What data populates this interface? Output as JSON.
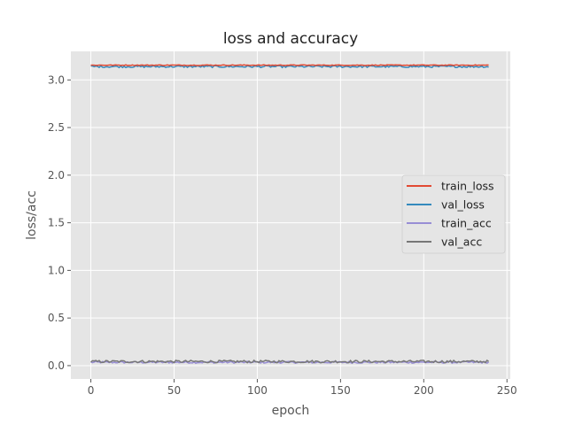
{
  "chart_data": {
    "type": "line",
    "title": "loss and accuracy",
    "xlabel": "epoch",
    "ylabel": "loss/acc",
    "xlim": [
      -12,
      252
    ],
    "ylim": [
      -0.14,
      3.3
    ],
    "xticks": [
      0,
      50,
      100,
      150,
      200,
      250
    ],
    "yticks": [
      0.0,
      0.5,
      1.0,
      1.5,
      2.0,
      2.5,
      3.0
    ],
    "xtick_labels": [
      "0",
      "50",
      "100",
      "150",
      "200",
      "250"
    ],
    "ytick_labels": [
      "0.0",
      "0.5",
      "1.0",
      "1.5",
      "2.0",
      "2.5",
      "3.0"
    ],
    "grid": true,
    "legend_position": "center-right",
    "background": "#e5e5e5",
    "x_range": [
      0,
      239
    ],
    "series": [
      {
        "name": "train_loss",
        "color": "#e24a33",
        "mean": 3.155,
        "jitter": 0.004
      },
      {
        "name": "val_loss",
        "color": "#348abd",
        "mean": 3.14,
        "jitter": 0.01
      },
      {
        "name": "train_acc",
        "color": "#988ed5",
        "mean": 0.035,
        "jitter": 0.01
      },
      {
        "name": "val_acc",
        "color": "#777777",
        "mean": 0.043,
        "jitter": 0.013
      }
    ]
  }
}
